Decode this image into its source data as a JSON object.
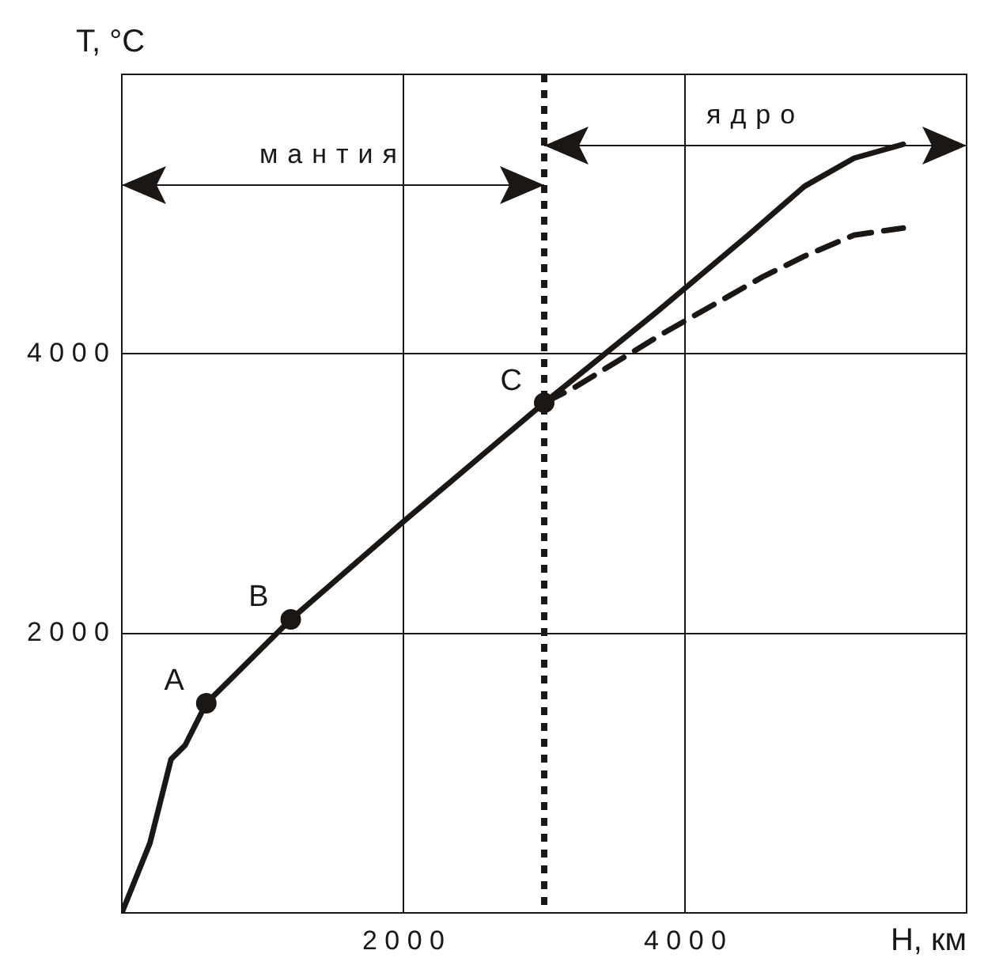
{
  "chart_data": {
    "type": "line",
    "xlabel": "H, км",
    "ylabel": "T, °C",
    "xlim": [
      0,
      6000
    ],
    "ylim": [
      0,
      6000
    ],
    "xticks": [
      2000,
      4000
    ],
    "yticks": [
      2000,
      4000
    ],
    "grid": true,
    "legend": false,
    "series": [
      {
        "color": "#1a1714",
        "marker": "none",
        "line_style": "solid",
        "x": [
          0,
          200,
          350,
          450,
          600,
          800,
          1200,
          2000,
          3000,
          3800,
          4450,
          4850,
          5200,
          5550
        ],
        "values": [
          0,
          500,
          1100,
          1200,
          1500,
          1700,
          2100,
          2800,
          3650,
          4300,
          4850,
          5200,
          5400,
          5500
        ]
      },
      {
        "color": "#1a1714",
        "marker": "none",
        "line_style": "dashed",
        "x": [
          3000,
          3200,
          3850,
          4550,
          4850,
          5200,
          5550
        ],
        "values": [
          3650,
          3750,
          4150,
          4550,
          4700,
          4850,
          4900
        ]
      },
      {
        "type": "scatter",
        "color": "#1a1714",
        "marker": "circle",
        "x": [
          600,
          1200,
          3000
        ],
        "values": [
          1500,
          2100,
          3650
        ]
      }
    ],
    "ref_lines": [
      {
        "axis": "x",
        "value": 3000,
        "line_style": "dotted",
        "color": "#1a1714"
      }
    ],
    "annotations": [
      "мантия",
      "ядро",
      {
        "text": "A",
        "x": 600,
        "y": 1500
      },
      {
        "text": "B",
        "x": 1200,
        "y": 2100
      },
      {
        "text": "C",
        "x": 3000,
        "y": 3650
      }
    ]
  }
}
